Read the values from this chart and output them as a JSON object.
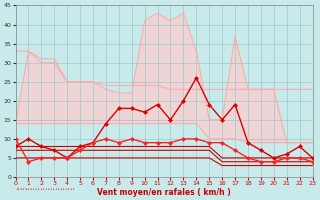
{
  "bg_color": "#c8eaea",
  "grid_color": "#a0c8c8",
  "xlabel": "Vent moyen/en rafales ( km/h )",
  "ylim": [
    0,
    45
  ],
  "yticks": [
    0,
    5,
    10,
    15,
    20,
    25,
    30,
    35,
    40,
    45
  ],
  "xlim": [
    0,
    23
  ],
  "xticks": [
    0,
    1,
    2,
    3,
    4,
    5,
    6,
    7,
    8,
    9,
    10,
    11,
    12,
    13,
    14,
    15,
    16,
    17,
    18,
    19,
    20,
    21,
    22,
    23
  ],
  "hours": [
    0,
    1,
    2,
    3,
    4,
    5,
    6,
    7,
    8,
    9,
    10,
    11,
    12,
    13,
    14,
    15,
    16,
    17,
    18,
    19,
    20,
    21,
    22,
    23
  ],
  "rafale_upper": [
    14,
    33,
    30,
    30,
    25,
    25,
    25,
    23,
    22,
    22,
    41,
    43,
    41,
    43,
    33,
    15,
    15,
    37,
    23,
    23,
    23,
    9,
    9,
    9
  ],
  "rafale_lower": [
    14,
    14,
    14,
    14,
    14,
    14,
    14,
    14,
    14,
    14,
    14,
    14,
    14,
    14,
    14,
    10,
    10,
    10,
    9,
    9,
    9,
    9,
    9,
    9
  ],
  "pink_upper2": [
    33,
    33,
    31,
    31,
    25,
    25,
    25,
    24,
    24,
    24,
    24,
    24,
    23,
    23,
    23,
    23,
    23,
    23,
    23,
    23,
    23,
    23,
    23,
    23
  ],
  "pink_lower2": [
    14,
    14,
    14,
    14,
    14,
    14,
    14,
    14,
    14,
    14,
    14,
    14,
    10,
    10,
    10,
    10,
    10,
    10,
    9,
    9,
    9,
    9,
    9,
    9
  ],
  "vent_moyen": [
    8,
    10,
    8,
    7,
    5,
    8,
    9,
    14,
    18,
    18,
    17,
    19,
    15,
    20,
    26,
    19,
    15,
    19,
    9,
    7,
    5,
    6,
    8,
    5
  ],
  "vent_rafales": [
    10,
    4,
    5,
    5,
    5,
    7,
    9,
    10,
    9,
    10,
    9,
    9,
    9,
    10,
    10,
    9,
    9,
    7,
    5,
    4,
    4,
    5,
    5,
    4
  ],
  "step_lines": [
    [
      8,
      8,
      8,
      8,
      8,
      8,
      8,
      8,
      8,
      8,
      8,
      8,
      8,
      8,
      8,
      8,
      5,
      5,
      5,
      5,
      5,
      5,
      5,
      5
    ],
    [
      7,
      7,
      7,
      7,
      7,
      7,
      7,
      7,
      7,
      7,
      7,
      7,
      7,
      7,
      7,
      7,
      4,
      4,
      4,
      4,
      4,
      4,
      4,
      4
    ],
    [
      5,
      5,
      5,
      5,
      5,
      5,
      5,
      5,
      5,
      5,
      5,
      5,
      5,
      5,
      5,
      5,
      3,
      3,
      3,
      3,
      3,
      3,
      3,
      3
    ]
  ],
  "arrow_text": "↓↓↘↓↘↓↓↓↓↓↓↓↓↓↓↓↓↓↓↓↓↓↓↓",
  "arrow_color": "#cc0000"
}
